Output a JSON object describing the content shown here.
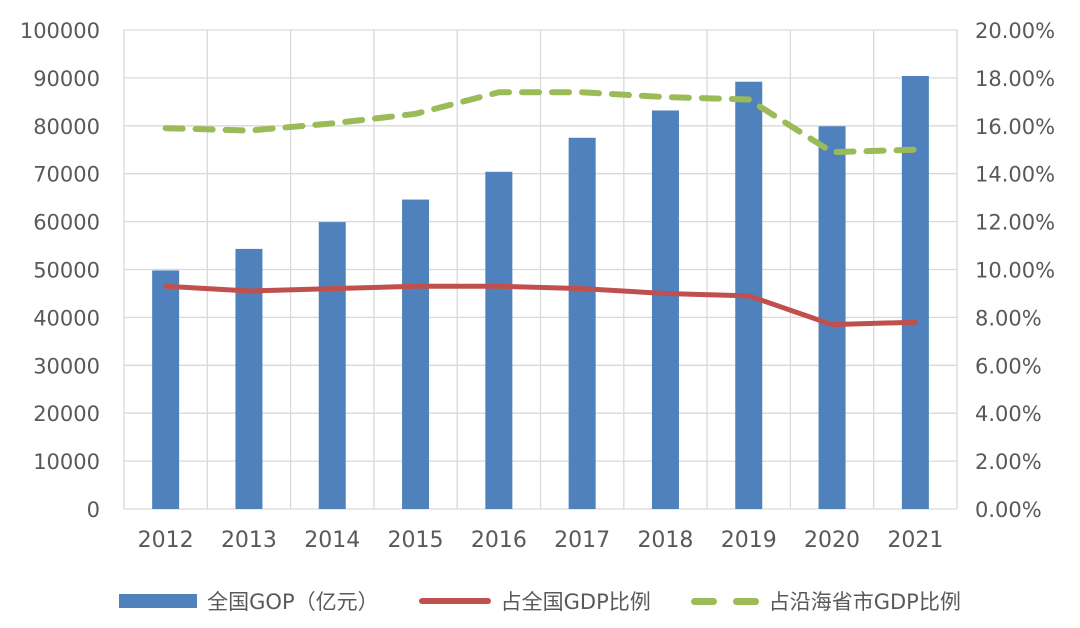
{
  "chart_data": {
    "type": "bar+line",
    "title": "",
    "categories": [
      "2012",
      "2013",
      "2014",
      "2015",
      "2016",
      "2017",
      "2018",
      "2019",
      "2020",
      "2021"
    ],
    "series": [
      {
        "name": "全国GOP（亿元）",
        "type": "bar",
        "axis": "left",
        "color": "#4F81BD",
        "values": [
          49800,
          54300,
          59900,
          64600,
          70400,
          77500,
          83200,
          89200,
          79900,
          90400
        ]
      },
      {
        "name": "占全国GDP比例",
        "type": "line",
        "style": "solid",
        "axis": "right",
        "color": "#C0504D",
        "values": [
          9.3,
          9.1,
          9.2,
          9.3,
          9.3,
          9.2,
          9.0,
          8.9,
          7.7,
          7.8
        ]
      },
      {
        "name": "占沿海省市GDP比例",
        "type": "line",
        "style": "dashed",
        "axis": "right",
        "color": "#9BBB59",
        "values": [
          15.9,
          15.8,
          16.1,
          16.5,
          17.4,
          17.4,
          17.2,
          17.1,
          14.9,
          15.0
        ]
      }
    ],
    "left_axis": {
      "min": 0,
      "max": 100000,
      "step": 10000,
      "labels": [
        "0",
        "10000",
        "20000",
        "30000",
        "40000",
        "50000",
        "60000",
        "70000",
        "80000",
        "90000",
        "100000"
      ]
    },
    "right_axis": {
      "min": 0,
      "max": 20,
      "step": 2,
      "labels": [
        "0.00%",
        "2.00%",
        "4.00%",
        "6.00%",
        "8.00%",
        "10.00%",
        "12.00%",
        "14.00%",
        "16.00%",
        "18.00%",
        "20.00%"
      ]
    },
    "grid": {
      "horizontal": true,
      "vertical": true,
      "color": "#D9D9D9"
    },
    "legend_position": "bottom",
    "text_color": "#595959"
  }
}
